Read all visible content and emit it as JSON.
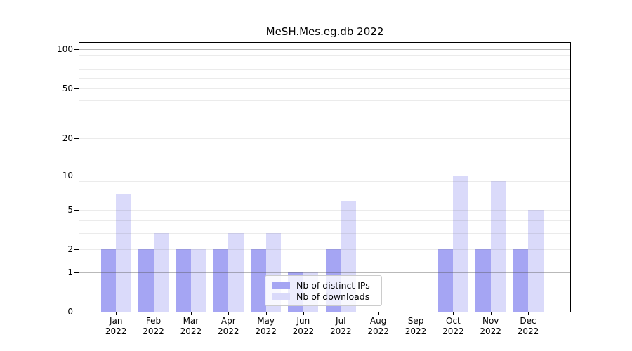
{
  "title": "MeSH.Mes.eg.db 2022",
  "chart_data": {
    "type": "bar",
    "title": "MeSH.Mes.eg.db 2022",
    "x_year": "2022",
    "categories": [
      "Jan",
      "Feb",
      "Mar",
      "Apr",
      "May",
      "Jun",
      "Jul",
      "Aug",
      "Sep",
      "Oct",
      "Nov",
      "Dec"
    ],
    "series": [
      {
        "name": "Nb of distinct IPs",
        "color": "#a5a5f3",
        "values": [
          2,
          2,
          2,
          2,
          2,
          1,
          2,
          0,
          0,
          2,
          2,
          2
        ]
      },
      {
        "name": "Nb of downloads",
        "color": "#dadafa",
        "values": [
          7,
          3,
          2,
          3,
          3,
          1,
          6,
          0,
          0,
          10,
          9,
          5
        ]
      }
    ],
    "y_scale": "log1p",
    "ylim": [
      0,
      112
    ],
    "y_ticks_labeled": [
      0,
      1,
      2,
      5,
      10,
      20,
      50,
      100
    ],
    "y_major_gridlines": [
      1,
      10,
      100
    ],
    "y_minor_gridlines": [
      2,
      3,
      4,
      5,
      6,
      7,
      8,
      9,
      20,
      30,
      40,
      50,
      60,
      70,
      80,
      90
    ],
    "grid": true,
    "legend_position": "lower center"
  },
  "colors": {
    "axis": "#000000",
    "major_grid": "#b8b8b8",
    "minor_grid": "#e8e8e8",
    "background": "#ffffff",
    "legend_border": "#cccccc"
  }
}
